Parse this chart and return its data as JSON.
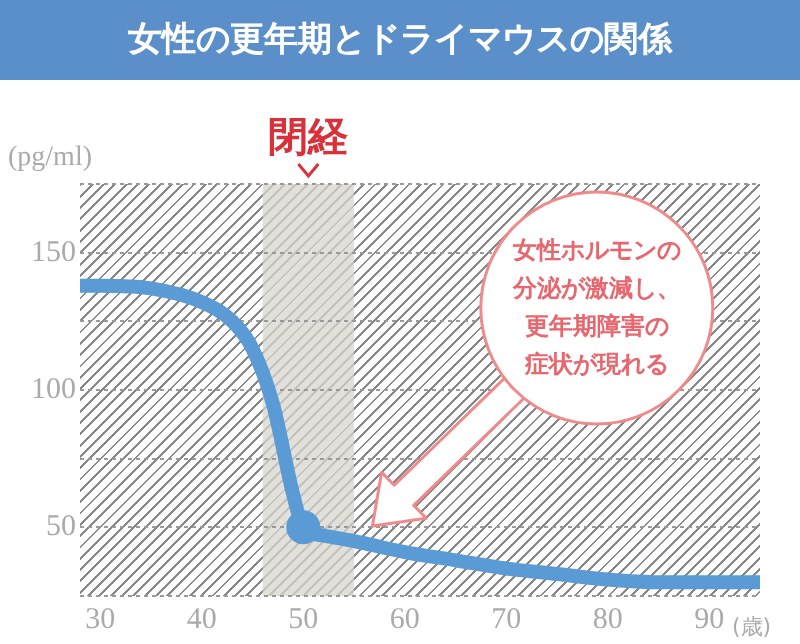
{
  "chart_data": {
    "type": "line",
    "title": "女性の更年期とドライマウスの関係",
    "ylabel": "(pg/ml)",
    "xlabel": "(歳)",
    "series": [
      {
        "type": "line",
        "color": "#5b9bd5",
        "x": [
          28,
          30,
          35,
          40,
          43,
          45,
          47,
          49,
          50,
          52,
          55,
          60,
          65,
          70,
          75,
          80,
          85,
          90,
          95
        ],
        "values": [
          138,
          138,
          137,
          132,
          125,
          115,
          95,
          62,
          50,
          47,
          45,
          41,
          38,
          35,
          33,
          31,
          30,
          30,
          30
        ]
      },
      {
        "type": "scatter",
        "color": "#5b9bd5",
        "x": [
          50
        ],
        "values": [
          50
        ],
        "marker": "circle"
      }
    ],
    "xlim": [
      28,
      95
    ],
    "xticks": [
      30,
      40,
      50,
      60,
      70,
      80,
      90
    ],
    "ylim": [
      25,
      175
    ],
    "yticks": [
      {
        "value": 25,
        "label": null
      },
      50,
      {
        "value": 75,
        "label": null
      },
      100,
      {
        "value": 125,
        "label": null
      },
      150,
      {
        "value": 175,
        "label": null
      }
    ],
    "bands": [
      {
        "axis": "x",
        "from": 46,
        "to": 55,
        "label": "閉経",
        "color": "#d8d5ce"
      }
    ],
    "annotations": [
      "女性ホルモンの分泌が激減し、更年期障害の症状が現れる"
    ],
    "grid": "y",
    "legend": false,
    "line_style": "solid"
  }
}
